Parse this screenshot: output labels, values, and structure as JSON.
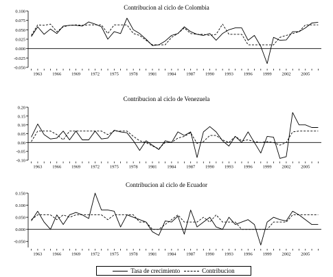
{
  "chart_data": [
    {
      "type": "line",
      "title": "Contribucion al ciclo de Colombia",
      "x": [
        1962,
        1963,
        1964,
        1965,
        1966,
        1967,
        1968,
        1969,
        1970,
        1971,
        1972,
        1973,
        1974,
        1975,
        1976,
        1977,
        1978,
        1979,
        1980,
        1981,
        1982,
        1983,
        1984,
        1985,
        1986,
        1987,
        1988,
        1989,
        1990,
        1991,
        1992,
        1993,
        1994,
        1995,
        1996,
        1997,
        1998,
        1999,
        2000,
        2001,
        2002,
        2003,
        2004,
        2005,
        2006,
        2007
      ],
      "xticks": [
        1963,
        1966,
        1969,
        1972,
        1975,
        1978,
        1981,
        1984,
        1987,
        1990,
        1993,
        1996,
        1999,
        2002,
        2005
      ],
      "yticks": [
        -0.05,
        -0.025,
        0,
        0.025,
        0.05,
        0.075,
        0.1
      ],
      "ytick_labels": [
        "-0.050",
        "-0.025",
        "0.000",
        "0.025",
        "0.050",
        "0.075",
        "0.100"
      ],
      "ylim": [
        -0.05,
        0.1
      ],
      "series": [
        {
          "name": "Tasa de crecimiento",
          "style": "solid",
          "values": [
            0.032,
            0.058,
            0.038,
            0.052,
            0.04,
            0.06,
            0.062,
            0.062,
            0.06,
            0.071,
            0.065,
            0.058,
            0.025,
            0.045,
            0.04,
            0.081,
            0.05,
            0.04,
            0.025,
            0.008,
            0.01,
            0.02,
            0.035,
            0.04,
            0.058,
            0.045,
            0.038,
            0.035,
            0.04,
            0.022,
            0.04,
            0.05,
            0.055,
            0.055,
            0.022,
            0.035,
            0.006,
            -0.04,
            0.03,
            0.022,
            0.023,
            0.045,
            0.045,
            0.055,
            0.068,
            0.07
          ]
        },
        {
          "name": "Contribucion",
          "style": "dashed",
          "values": [
            0.035,
            0.063,
            0.062,
            0.065,
            0.045,
            0.058,
            0.062,
            0.063,
            0.062,
            0.063,
            0.063,
            0.063,
            0.04,
            0.063,
            0.063,
            0.063,
            0.04,
            0.035,
            0.022,
            0.01,
            0.01,
            0.01,
            0.03,
            0.04,
            0.055,
            0.04,
            0.038,
            0.038,
            0.035,
            0.038,
            0.065,
            0.038,
            0.038,
            0.038,
            0.01,
            0.01,
            0.01,
            0.01,
            0.01,
            0.03,
            0.035,
            0.04,
            0.045,
            0.063,
            0.063,
            0.063
          ]
        }
      ]
    },
    {
      "type": "line",
      "title": "Contribucion al ciclo de Venezuela",
      "x": [
        1962,
        1963,
        1964,
        1965,
        1966,
        1967,
        1968,
        1969,
        1970,
        1971,
        1972,
        1973,
        1974,
        1975,
        1976,
        1977,
        1978,
        1979,
        1980,
        1981,
        1982,
        1983,
        1984,
        1985,
        1986,
        1987,
        1988,
        1989,
        1990,
        1991,
        1992,
        1993,
        1994,
        1995,
        1996,
        1997,
        1998,
        1999,
        2000,
        2001,
        2002,
        2003,
        2004,
        2005,
        2006,
        2007
      ],
      "xticks": [
        1963,
        1966,
        1969,
        1972,
        1975,
        1978,
        1981,
        1984,
        1987,
        1990,
        1993,
        1996,
        1999,
        2002,
        2005
      ],
      "yticks": [
        -0.1,
        -0.05,
        0,
        0.05,
        0.1,
        0.15,
        0.2
      ],
      "ytick_labels": [
        "-0.10",
        "-0.05",
        "0.00",
        "0.05",
        "0.10",
        "0.15",
        "0.20"
      ],
      "ylim": [
        -0.1,
        0.2
      ],
      "series": [
        {
          "name": "Tasa de crecimiento",
          "style": "solid",
          "values": [
            0.03,
            0.105,
            0.045,
            0.02,
            0.025,
            0.065,
            0.015,
            0.065,
            0.015,
            0.015,
            0.065,
            0.02,
            0.025,
            0.07,
            0.06,
            0.055,
            0.01,
            -0.045,
            0.01,
            -0.015,
            -0.04,
            0.01,
            0.0,
            0.06,
            0.04,
            0.06,
            -0.085,
            0.06,
            0.09,
            0.06,
            0.01,
            -0.02,
            0.035,
            0.0,
            0.06,
            0.0,
            -0.06,
            0.035,
            0.03,
            -0.09,
            -0.08,
            0.17,
            0.1,
            0.1,
            0.085,
            0.085
          ]
        },
        {
          "name": "Contribucion",
          "style": "dashed",
          "values": [
            0.005,
            0.065,
            0.065,
            0.065,
            0.045,
            0.015,
            0.065,
            0.065,
            0.065,
            0.065,
            0.065,
            0.065,
            0.045,
            0.065,
            0.065,
            0.065,
            0.035,
            0.01,
            0.0,
            -0.02,
            -0.035,
            0.0,
            0.0,
            0.025,
            0.035,
            0.055,
            -0.005,
            0.005,
            0.04,
            0.04,
            0.015,
            0.0,
            0.035,
            0.01,
            0.015,
            0.005,
            0.0,
            0.005,
            0.0,
            -0.015,
            0.0,
            0.06,
            0.065,
            0.065,
            0.065,
            0.065
          ]
        }
      ]
    },
    {
      "type": "line",
      "title": "Contribucion al ciclo de Ecuador",
      "x": [
        1962,
        1963,
        1964,
        1965,
        1966,
        1967,
        1968,
        1969,
        1970,
        1971,
        1972,
        1973,
        1974,
        1975,
        1976,
        1977,
        1978,
        1979,
        1980,
        1981,
        1982,
        1983,
        1984,
        1985,
        1986,
        1987,
        1988,
        1989,
        1990,
        1991,
        1992,
        1993,
        1994,
        1995,
        1996,
        1997,
        1998,
        1999,
        2000,
        2001,
        2002,
        2003,
        2004,
        2005,
        2006,
        2007
      ],
      "xticks": [
        1963,
        1966,
        1969,
        1972,
        1975,
        1978,
        1981,
        1984,
        1987,
        1990,
        1993,
        1996,
        1999,
        2002,
        2005
      ],
      "yticks": [
        -0.05,
        0,
        0.05,
        0.1,
        0.15
      ],
      "ytick_labels": [
        "-0.050",
        "0.000",
        "0.050",
        "0.100",
        "0.150"
      ],
      "ylim": [
        -0.075,
        0.15
      ],
      "series": [
        {
          "name": "Tasa de crecimiento",
          "style": "solid",
          "values": [
            0.035,
            0.075,
            0.03,
            0.0,
            0.06,
            0.02,
            0.06,
            0.07,
            0.06,
            0.045,
            0.15,
            0.08,
            0.08,
            0.075,
            0.01,
            0.06,
            0.05,
            0.04,
            0.03,
            -0.01,
            -0.025,
            0.035,
            0.03,
            0.055,
            -0.02,
            0.08,
            0.01,
            0.03,
            0.05,
            0.01,
            0.0,
            0.05,
            0.02,
            0.03,
            0.04,
            0.02,
            -0.065,
            0.03,
            0.05,
            0.04,
            0.035,
            0.075,
            0.06,
            0.04,
            0.02,
            0.02
          ]
        },
        {
          "name": "Contribucion",
          "style": "dashed",
          "values": [
            0.04,
            0.06,
            0.06,
            0.06,
            0.04,
            0.06,
            0.05,
            0.06,
            0.06,
            0.06,
            0.06,
            0.06,
            0.04,
            0.06,
            0.06,
            0.06,
            0.06,
            0.03,
            0.03,
            0.0,
            0.0,
            0.02,
            0.04,
            0.06,
            0.03,
            0.03,
            0.03,
            0.05,
            0.03,
            0.06,
            0.03,
            0.03,
            0.03,
            0.0,
            0.0,
            0.0,
            0.0,
            0.0,
            0.03,
            0.03,
            0.03,
            0.06,
            0.06,
            0.06,
            0.06,
            0.06
          ]
        }
      ]
    }
  ],
  "legend": {
    "position": "bottom-center",
    "items": [
      {
        "label": "Tasa de crecimiento",
        "style": "solid"
      },
      {
        "label": "Contribucion",
        "style": "dashed"
      }
    ]
  }
}
